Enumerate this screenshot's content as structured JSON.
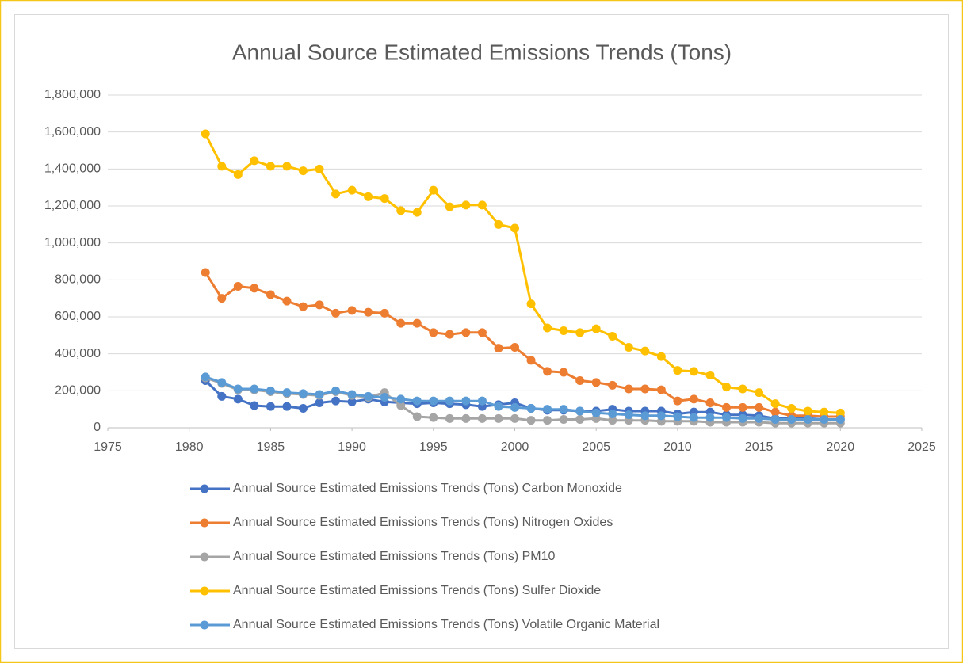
{
  "chart_data": {
    "type": "line",
    "title": "Annual Source Estimated Emissions Trends (Tons)",
    "x": [
      1981,
      1982,
      1983,
      1984,
      1985,
      1986,
      1987,
      1988,
      1989,
      1990,
      1991,
      1992,
      1993,
      1994,
      1995,
      1996,
      1997,
      1998,
      1999,
      2000,
      2001,
      2002,
      2003,
      2004,
      2005,
      2006,
      2007,
      2008,
      2009,
      2010,
      2011,
      2012,
      2013,
      2014,
      2015,
      2016,
      2017,
      2018,
      2019,
      2020
    ],
    "xlim": [
      1975,
      2025
    ],
    "xticks": [
      1975,
      1980,
      1985,
      1990,
      1995,
      2000,
      2005,
      2010,
      2015,
      2020,
      2025
    ],
    "ylim": [
      0,
      1800000
    ],
    "yticks": [
      0,
      {
        "value": 200000,
        "label": "200,000"
      },
      {
        "value": 400000,
        "label": "400,000"
      },
      {
        "value": 600000,
        "label": "600,000"
      },
      {
        "value": 800000,
        "label": "800,000"
      },
      {
        "value": 1000000,
        "label": "1,000,000"
      },
      {
        "value": 1200000,
        "label": "1,200,000"
      },
      {
        "value": 1400000,
        "label": "1,400,000"
      },
      {
        "value": 1600000,
        "label": "1,600,000"
      },
      {
        "value": 1800000,
        "label": "1,800,000"
      }
    ],
    "grid": true,
    "legend": "bottom",
    "series": [
      {
        "name": "Annual Source Estimated Emissions Trends (Tons) Carbon Monoxide",
        "color": "#4472c4",
        "values": [
          255000,
          170000,
          155000,
          120000,
          115000,
          115000,
          105000,
          135000,
          145000,
          140000,
          155000,
          140000,
          135000,
          130000,
          135000,
          130000,
          125000,
          115000,
          125000,
          135000,
          105000,
          95000,
          95000,
          90000,
          90000,
          100000,
          90000,
          90000,
          90000,
          75000,
          85000,
          85000,
          70000,
          70000,
          65000,
          50000,
          50000,
          50000,
          45000,
          45000
        ]
      },
      {
        "name": "Annual Source Estimated Emissions Trends (Tons) Nitrogen Oxides",
        "color": "#ed7d31",
        "values": [
          840000,
          700000,
          765000,
          755000,
          720000,
          685000,
          655000,
          665000,
          620000,
          635000,
          625000,
          620000,
          565000,
          565000,
          515000,
          505000,
          515000,
          515000,
          430000,
          435000,
          365000,
          305000,
          300000,
          255000,
          245000,
          230000,
          210000,
          210000,
          205000,
          145000,
          155000,
          135000,
          110000,
          110000,
          110000,
          85000,
          65000,
          65000,
          60000,
          60000
        ]
      },
      {
        "name": "Annual Source Estimated Emissions Trends (Tons) PM10",
        "color": "#a5a5a5",
        "values": [
          270000,
          240000,
          205000,
          205000,
          195000,
          185000,
          180000,
          175000,
          195000,
          175000,
          165000,
          190000,
          120000,
          60000,
          55000,
          50000,
          50000,
          50000,
          50000,
          50000,
          40000,
          40000,
          45000,
          45000,
          50000,
          40000,
          40000,
          40000,
          35000,
          35000,
          35000,
          30000,
          30000,
          30000,
          30000,
          25000,
          25000,
          25000,
          25000,
          25000
        ]
      },
      {
        "name": "Annual Source Estimated Emissions Trends (Tons) Sulfer Dioxide",
        "color": "#ffc000",
        "values": [
          1590000,
          1415000,
          1370000,
          1445000,
          1415000,
          1415000,
          1390000,
          1400000,
          1265000,
          1285000,
          1250000,
          1240000,
          1175000,
          1165000,
          1285000,
          1195000,
          1205000,
          1205000,
          1100000,
          1080000,
          670000,
          540000,
          525000,
          515000,
          535000,
          495000,
          435000,
          415000,
          385000,
          310000,
          305000,
          285000,
          220000,
          210000,
          190000,
          130000,
          105000,
          90000,
          85000,
          80000
        ]
      },
      {
        "name": "Annual Source Estimated Emissions Trends (Tons) Volatile Organic Material",
        "color": "#5b9bd5",
        "values": [
          275000,
          245000,
          210000,
          210000,
          200000,
          190000,
          185000,
          180000,
          200000,
          180000,
          170000,
          165000,
          155000,
          145000,
          145000,
          145000,
          145000,
          145000,
          115000,
          110000,
          105000,
          100000,
          100000,
          90000,
          80000,
          75000,
          70000,
          65000,
          65000,
          60000,
          55000,
          55000,
          55000,
          50000,
          50000,
          45000,
          45000,
          45000,
          45000,
          45000
        ]
      }
    ]
  }
}
